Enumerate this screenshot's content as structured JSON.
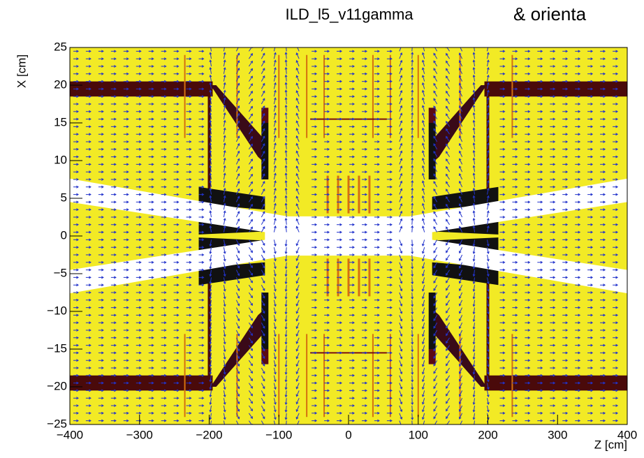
{
  "chart_data": {
    "type": "vector-field",
    "title": "ILD_l5_v11gamma",
    "annotation": "& orienta",
    "annotation_color": "#2a55d6",
    "x_label": "Z [cm]",
    "y_label": "X [cm]",
    "xlim": [
      -400,
      400
    ],
    "ylim": [
      -25,
      25
    ],
    "xticks": [
      {
        "value": -400,
        "label": "−400"
      },
      {
        "value": -300,
        "label": "−300"
      },
      {
        "value": -200,
        "label": "−200"
      },
      {
        "value": -100,
        "label": "−100"
      },
      0,
      100,
      200,
      300,
      400
    ],
    "yticks": [
      {
        "value": -25,
        "label": "−25"
      },
      {
        "value": -20,
        "label": "−20"
      },
      {
        "value": -15,
        "label": "−15"
      },
      {
        "value": -10,
        "label": "−10"
      },
      {
        "value": -5,
        "label": "−5"
      },
      0,
      5,
      10,
      15,
      20,
      25
    ],
    "background_color": "#f2ea25",
    "arrow_color": "#2233cc"
  }
}
